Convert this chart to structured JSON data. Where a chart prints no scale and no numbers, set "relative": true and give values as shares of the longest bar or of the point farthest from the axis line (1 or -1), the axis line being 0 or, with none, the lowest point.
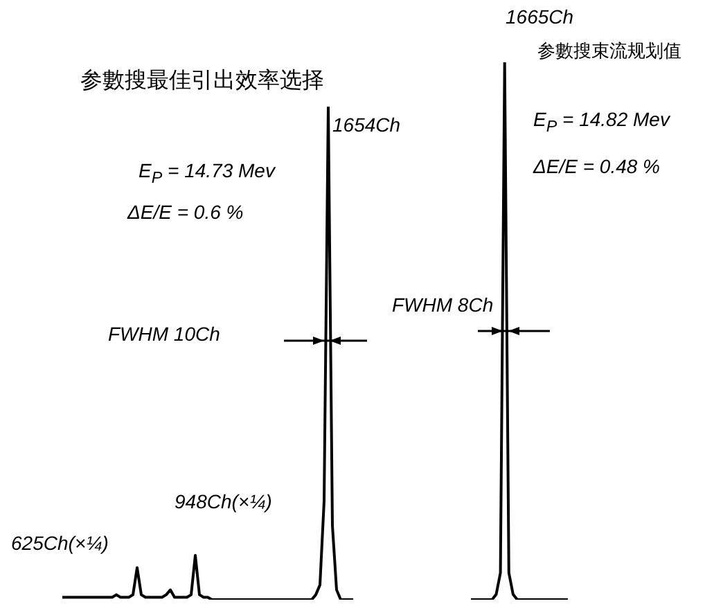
{
  "chart_data": [
    {
      "type": "line",
      "title": "参數搜最佳引出效率选择",
      "relative": true,
      "legend": false,
      "marker": "none",
      "line_style": "solid",
      "categories": [
        null,
        null,
        null,
        null,
        null,
        null,
        null,
        null,
        null,
        null,
        null,
        null,
        null,
        null,
        null,
        null,
        null,
        null,
        null,
        null,
        null,
        null,
        null,
        null,
        null,
        null,
        null,
        null,
        null,
        null,
        null,
        null,
        null,
        null,
        null,
        null,
        null,
        null,
        null,
        null,
        null,
        null,
        null,
        null,
        null,
        null,
        null,
        null,
        null,
        null,
        null,
        null,
        null,
        null,
        null,
        null,
        null,
        null,
        null,
        null,
        null,
        null,
        null,
        null,
        null,
        null,
        null,
        null,
        null,
        null,
        null
      ],
      "series": [
        {
          "color": "#000000",
          "values": [
            0.005,
            0.005,
            0.005,
            0.005,
            0.005,
            0.005,
            0.005,
            0.005,
            0.005,
            0.005,
            0.005,
            0.005,
            0.005,
            0.01,
            0.005,
            0.005,
            0.005,
            0.01,
            0.065,
            0.01,
            0.005,
            0.005,
            0.005,
            0.005,
            0.005,
            0.01,
            0.02,
            0.005,
            0.005,
            0.005,
            0.005,
            0.01,
            0.09,
            0.01,
            0.005,
            0.005,
            0,
            0,
            0,
            0,
            0,
            0,
            0,
            0,
            0,
            0,
            0,
            0,
            0,
            0,
            0,
            0,
            0,
            0,
            0,
            0,
            0,
            0,
            0,
            0,
            0,
            0.01,
            0.03,
            0.2,
            1,
            0.15,
            0.02,
            0,
            0,
            0,
            0
          ]
        }
      ],
      "annotations": [
        "1654Ch",
        "E$_{P}$ = 14.73 Mev",
        "ΔE/E = 0.6 %",
        "FWHM 10Ch",
        "948Ch(×¼)",
        "625Ch(×¼)"
      ]
    },
    {
      "type": "line",
      "title": "参數搜束流规划值",
      "relative": true,
      "legend": false,
      "marker": "none",
      "line_style": "solid",
      "categories": [
        null,
        null,
        null,
        null,
        null,
        null,
        null,
        null,
        null,
        null,
        null,
        null,
        null,
        null,
        null,
        null,
        null,
        null,
        null,
        null,
        null,
        null,
        null,
        null
      ],
      "series": [
        {
          "color": "#000000",
          "values": [
            0,
            0,
            0,
            0,
            0,
            0,
            0.01,
            0.05,
            1,
            0.05,
            0.01,
            0,
            0,
            0,
            0,
            0,
            0,
            0,
            0,
            0,
            0,
            0,
            0,
            0
          ]
        }
      ],
      "annotations": [
        "1665Ch",
        "E$_{P}$ = 14.82 Mev",
        "ΔE/E = 0.48 %",
        "FWHM 8Ch"
      ]
    }
  ]
}
